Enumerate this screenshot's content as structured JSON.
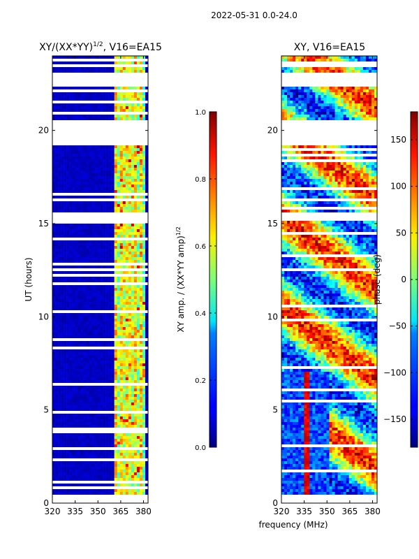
{
  "suptitle": "2022-05-31 0.0-24.0",
  "chart_data": [
    {
      "type": "heatmap",
      "title": "XY/(XX*YY)^{1/2}, V16=EA15",
      "title_main": "XY/(XX*YY)",
      "title_exp": "1/2",
      "title_tail": ", V16=EA15",
      "ylabel": "UT (hours)",
      "x_ticks": [
        "320",
        "335",
        "350",
        "365",
        "380"
      ],
      "x_tick_values": [
        320,
        335,
        350,
        365,
        380
      ],
      "y_ticks": [
        "0",
        "5",
        "10",
        "15",
        "20"
      ],
      "y_tick_values": [
        0,
        5,
        10,
        15,
        20
      ],
      "xlim": [
        320,
        383
      ],
      "ylim": [
        0,
        24
      ],
      "colorbar": {
        "label_main": "XY amp. / (XX*YY amp)",
        "label_exp": "1/2",
        "ticks": [
          "0.0",
          "0.2",
          "0.4",
          "0.6",
          "0.8",
          "1.0"
        ],
        "tick_values": [
          0.0,
          0.2,
          0.4,
          0.6,
          0.8,
          1.0
        ],
        "range": [
          0.0,
          1.0
        ]
      }
    },
    {
      "type": "heatmap",
      "title": "XY, V16=EA15",
      "xlabel": "frequency (MHz)",
      "x_ticks": [
        "320",
        "335",
        "350",
        "365",
        "380"
      ],
      "x_tick_values": [
        320,
        335,
        350,
        365,
        380
      ],
      "y_ticks": [
        "0",
        "5",
        "10",
        "15",
        "20"
      ],
      "y_tick_values": [
        0,
        5,
        10,
        15,
        20
      ],
      "xlim": [
        320,
        383
      ],
      "ylim": [
        0,
        24
      ],
      "colorbar": {
        "label": "phase (deg)",
        "ticks": [
          "−150",
          "−100",
          "−50",
          "0",
          "50",
          "100",
          "150"
        ],
        "tick_values": [
          -150,
          -100,
          -50,
          0,
          50,
          100,
          150
        ],
        "range": [
          -180,
          180
        ]
      }
    }
  ]
}
